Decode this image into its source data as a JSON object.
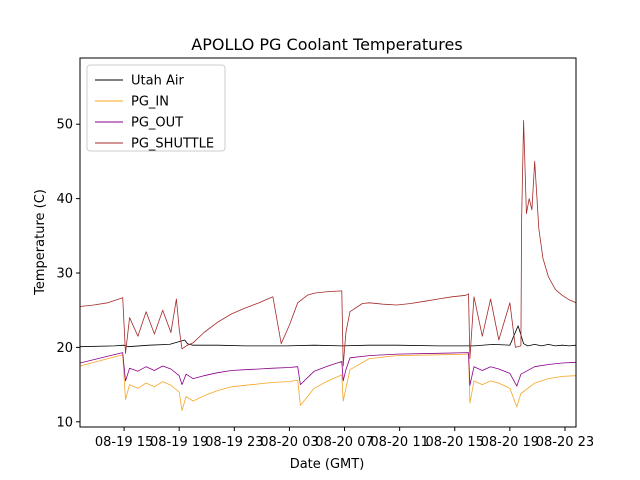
{
  "chart_data": {
    "type": "line",
    "title": "APOLLO PG Coolant Temperatures",
    "xlabel": "Date (GMT)",
    "ylabel": "Temperature (C)",
    "x_unit": "hours since 08-19 12:00 GMT",
    "xlim": [
      0.0,
      36.0
    ],
    "ylim": [
      9.3,
      58.9
    ],
    "xticks": [
      {
        "value": 3.2,
        "label": "08-19 15"
      },
      {
        "value": 7.2,
        "label": "08-19 19"
      },
      {
        "value": 11.2,
        "label": "08-19 23"
      },
      {
        "value": 15.2,
        "label": "08-20 03"
      },
      {
        "value": 19.2,
        "label": "08-20 07"
      },
      {
        "value": 23.2,
        "label": "08-20 11"
      },
      {
        "value": 27.2,
        "label": "08-20 15"
      },
      {
        "value": 31.2,
        "label": "08-20 19"
      },
      {
        "value": 35.2,
        "label": "08-20 23"
      }
    ],
    "yticks": [
      10,
      20,
      30,
      40,
      50
    ],
    "legend_position": "upper-left",
    "series": [
      {
        "name": "Utah Air",
        "color": "#000000",
        "x": [
          0,
          2.5,
          3.2,
          3.5,
          5,
          6.5,
          7.6,
          7.8,
          8.2,
          9,
          10,
          12,
          15,
          17,
          19,
          21,
          23,
          26,
          28.3,
          28.6,
          30,
          31.2,
          31.8,
          32.2,
          32.5,
          33,
          33.5,
          34,
          34.5,
          35,
          35.5,
          36
        ],
        "y": [
          20.1,
          20.2,
          20.3,
          20.1,
          20.3,
          20.4,
          21.0,
          20.5,
          20.3,
          20.3,
          20.3,
          20.2,
          20.2,
          20.3,
          20.2,
          20.3,
          20.3,
          20.2,
          20.2,
          20.2,
          20.4,
          20.3,
          22.9,
          20.5,
          20.2,
          20.4,
          20.2,
          20.4,
          20.2,
          20.3,
          20.2,
          20.3
        ]
      },
      {
        "name": "PG_IN",
        "color": "#f5a623",
        "x": [
          0,
          3.1,
          3.3,
          3.6,
          4.2,
          4.8,
          5.4,
          6.0,
          6.6,
          7.2,
          7.4,
          7.7,
          8.2,
          9.0,
          10.0,
          11.0,
          12.0,
          13.0,
          14.0,
          15.2,
          15.8,
          16.0,
          17.0,
          18.0,
          19.0,
          19.1,
          19.3,
          19.6,
          21.0,
          23.0,
          26.0,
          28.2,
          28.3,
          28.6,
          29.2,
          29.8,
          30.4,
          31.2,
          31.7,
          32.0,
          33.0,
          34.0,
          35.0,
          36.0
        ],
        "y": [
          17.5,
          19.0,
          13.0,
          15.0,
          14.5,
          15.2,
          14.7,
          15.4,
          14.9,
          14.0,
          11.5,
          13.4,
          12.8,
          13.5,
          14.2,
          14.7,
          14.9,
          15.1,
          15.3,
          15.4,
          15.6,
          12.2,
          14.5,
          15.5,
          16.3,
          12.8,
          14.5,
          17.0,
          18.5,
          18.9,
          19.0,
          19.1,
          12.5,
          15.5,
          15.0,
          15.5,
          15.2,
          14.5,
          12.0,
          13.8,
          15.2,
          15.8,
          16.1,
          16.2
        ]
      },
      {
        "name": "PG_OUT",
        "color": "#8b008b",
        "x": [
          0,
          3.1,
          3.3,
          3.6,
          4.2,
          4.8,
          5.4,
          6.0,
          6.6,
          7.2,
          7.4,
          7.7,
          8.2,
          9.0,
          10.0,
          11.0,
          12.0,
          13.0,
          14.0,
          15.2,
          15.8,
          16.0,
          17.0,
          18.0,
          19.0,
          19.1,
          19.3,
          19.6,
          21.0,
          23.0,
          26.0,
          28.2,
          28.3,
          28.6,
          29.2,
          29.8,
          30.4,
          31.2,
          31.7,
          32.0,
          33.0,
          34.0,
          35.0,
          36.0
        ],
        "y": [
          17.9,
          19.3,
          15.5,
          17.2,
          16.8,
          17.4,
          16.9,
          17.5,
          17.1,
          16.2,
          15.0,
          16.4,
          15.8,
          16.2,
          16.6,
          16.9,
          17.0,
          17.1,
          17.2,
          17.3,
          17.4,
          15.0,
          16.8,
          17.5,
          18.1,
          15.5,
          17.0,
          18.6,
          18.9,
          19.1,
          19.2,
          19.3,
          14.9,
          17.4,
          16.9,
          17.4,
          17.1,
          16.5,
          14.8,
          16.4,
          17.4,
          17.7,
          17.9,
          18.0
        ]
      },
      {
        "name": "PG_SHUTTLE",
        "color": "#a52a2a",
        "x": [
          0,
          1.0,
          2.0,
          3.0,
          3.1,
          3.3,
          3.6,
          4.2,
          4.8,
          5.4,
          6.0,
          6.6,
          7.0,
          7.2,
          7.4,
          7.7,
          8.2,
          9.0,
          10.0,
          11.0,
          12.0,
          13.0,
          14.0,
          14.6,
          15.2,
          15.8,
          16.5,
          17.0,
          18.0,
          19.0,
          19.1,
          19.3,
          19.6,
          20.5,
          21.0,
          22.0,
          23.0,
          24.0,
          25.0,
          26.0,
          27.0,
          28.0,
          28.2,
          28.3,
          28.6,
          29.2,
          29.8,
          30.4,
          31.2,
          31.6,
          32.0,
          32.05,
          32.2,
          32.4,
          32.6,
          32.8,
          33.0,
          33.3,
          33.6,
          34.0,
          34.5,
          35.0,
          35.5,
          36.0
        ],
        "y": [
          25.5,
          25.7,
          26.0,
          26.6,
          26.7,
          19.2,
          24.0,
          21.5,
          24.8,
          21.8,
          25.0,
          22.0,
          26.5,
          22.5,
          19.8,
          20.2,
          20.6,
          22.0,
          23.4,
          24.5,
          25.3,
          26.0,
          26.8,
          20.5,
          23.0,
          26.0,
          27.0,
          27.3,
          27.5,
          27.6,
          17.5,
          22.0,
          24.8,
          25.9,
          26.0,
          25.8,
          25.7,
          25.9,
          26.2,
          26.5,
          26.8,
          27.0,
          27.2,
          18.5,
          26.8,
          21.5,
          26.5,
          21.0,
          26.0,
          20.0,
          20.2,
          37.0,
          50.5,
          38.0,
          40.0,
          38.5,
          45.0,
          36.0,
          32.0,
          29.5,
          27.8,
          27.0,
          26.4,
          26.0
        ]
      }
    ]
  }
}
